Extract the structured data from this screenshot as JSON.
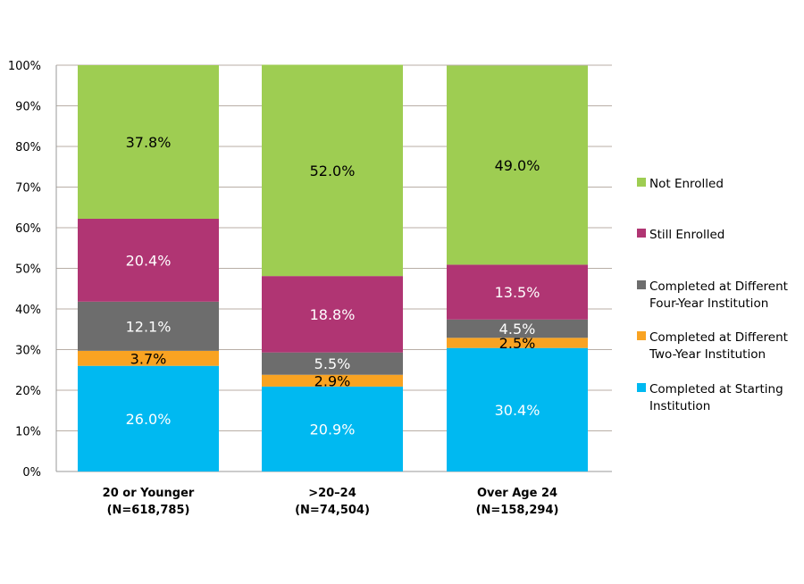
{
  "chart_data": {
    "type": "bar",
    "stacked": true,
    "categories": [
      {
        "line1": "20 or Younger",
        "line2": "(N=618,785)"
      },
      {
        "line1": ">20–24",
        "line2": "(N=74,504)"
      },
      {
        "line1": "Over Age 24",
        "line2": "(N=158,294)"
      }
    ],
    "series": [
      {
        "name": "Completed at Starting Institution",
        "legend_lines": [
          "Completed at Starting",
          "Institution"
        ],
        "color": "#00b9f1",
        "label_color": "#ffffff",
        "values": [
          26.0,
          20.9,
          30.4
        ]
      },
      {
        "name": "Completed at Different Two-Year Institution",
        "legend_lines": [
          "Completed at Different",
          "Two-Year Institution"
        ],
        "color": "#f9a322",
        "label_color": "#000000",
        "values": [
          3.7,
          2.9,
          2.5
        ]
      },
      {
        "name": "Completed at Different Four-Year Institution",
        "legend_lines": [
          "Completed at Different",
          "Four-Year Institution"
        ],
        "color": "#6d6d6d",
        "label_color": "#ffffff",
        "values": [
          12.1,
          5.5,
          4.5
        ]
      },
      {
        "name": "Still Enrolled",
        "legend_lines": [
          "Still Enrolled"
        ],
        "color": "#b03573",
        "label_color": "#ffffff",
        "values": [
          20.4,
          18.8,
          13.5
        ]
      },
      {
        "name": "Not Enrolled",
        "legend_lines": [
          "Not Enrolled"
        ],
        "color": "#9ecd52",
        "label_color": "#000000",
        "values": [
          37.8,
          52.0,
          49.0
        ]
      }
    ],
    "ylim": [
      0,
      100
    ],
    "yticks": [
      "0%",
      "10%",
      "20%",
      "30%",
      "40%",
      "50%",
      "60%",
      "70%",
      "80%",
      "90%",
      "100%"
    ],
    "grid": true,
    "legend_position": "right",
    "title": "",
    "xlabel": "",
    "ylabel": ""
  }
}
